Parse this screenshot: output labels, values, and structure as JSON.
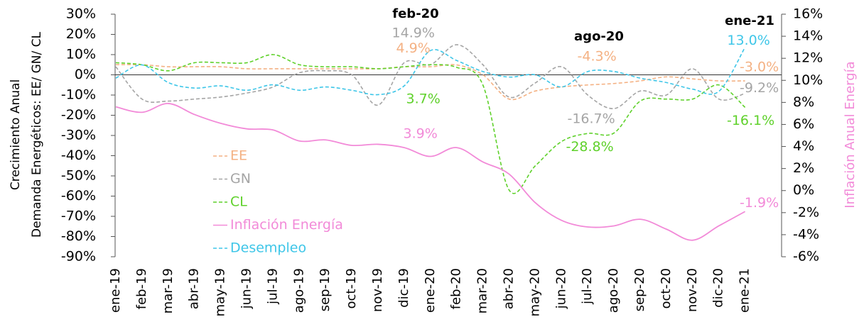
{
  "chart_data": {
    "type": "line",
    "ylabel": [
      "Crecimiento Anual",
      "Demanda Energéticos: EE/ GN/ CL"
    ],
    "y2label": "Inflación Anual Energía",
    "categories": [
      "ene-19",
      "feb-19",
      "mar-19",
      "abr-19",
      "may-19",
      "jun-19",
      "jul-19",
      "ago-19",
      "sep-19",
      "oct-19",
      "nov-19",
      "dic-19",
      "ene-20",
      "feb-20",
      "mar-20",
      "abr-20",
      "may-20",
      "jun-20",
      "jul-20",
      "ago-20",
      "sep-20",
      "oct-20",
      "nov-20",
      "dic-20",
      "ene-21"
    ],
    "annotations": [
      "feb-20",
      "ago-20",
      "ene-21"
    ],
    "ylim": [
      -90,
      30
    ],
    "yticks": [
      {
        "value": 30,
        "label": "30%"
      },
      {
        "value": 20,
        "label": "20%"
      },
      {
        "value": 10,
        "label": "10%"
      },
      {
        "value": 0,
        "label": "0%"
      },
      {
        "value": -10,
        "label": "-10%"
      },
      {
        "value": -20,
        "label": "-20%"
      },
      {
        "value": -30,
        "label": "-30%"
      },
      {
        "value": -40,
        "label": "-40%"
      },
      {
        "value": -50,
        "label": "-50%"
      },
      {
        "value": -60,
        "label": "-60%"
      },
      {
        "value": -70,
        "label": "-70%"
      },
      {
        "value": -80,
        "label": "-80%"
      },
      {
        "value": -90,
        "label": "-90%"
      }
    ],
    "y2lim": [
      -6,
      16
    ],
    "y2ticks": [
      {
        "value": 16,
        "label": "16%"
      },
      {
        "value": 14,
        "label": "14%"
      },
      {
        "value": 12,
        "label": "12%"
      },
      {
        "value": 10,
        "label": "10%"
      },
      {
        "value": 8,
        "label": "8%"
      },
      {
        "value": 6,
        "label": "6%"
      },
      {
        "value": 4,
        "label": "4%"
      },
      {
        "value": 2,
        "label": "2%"
      },
      {
        "value": 0,
        "label": "0%"
      },
      {
        "value": -2,
        "label": "-2%"
      },
      {
        "value": -4,
        "label": "-4%"
      },
      {
        "value": -6,
        "label": "-6%"
      }
    ],
    "series": [
      {
        "name": "EE",
        "color": "#f4b183",
        "dashed": true,
        "values": [
          5,
          5,
          4,
          4,
          4,
          3,
          3,
          3,
          3,
          3,
          3,
          4,
          4,
          4.9,
          0,
          -12,
          -8,
          -6,
          -5,
          -4.3,
          -3,
          -1,
          -2,
          -3,
          -3.0
        ],
        "value_labels": [
          null,
          null,
          null,
          null,
          null,
          null,
          null,
          null,
          null,
          null,
          null,
          null,
          null,
          "4.9%",
          null,
          null,
          null,
          null,
          null,
          "-4.3%",
          null,
          null,
          null,
          null,
          "-3.0%"
        ]
      },
      {
        "name": "GN",
        "color": "#a5a5a5",
        "dashed": true,
        "values": [
          4,
          -12,
          -13,
          -12,
          -11,
          -9,
          -6,
          1,
          2,
          0,
          -15,
          6,
          5,
          14.9,
          5,
          -11,
          -4,
          4,
          -10,
          -16.7,
          -8,
          -10,
          3,
          -12,
          -9.2
        ],
        "value_labels": [
          null,
          null,
          null,
          null,
          null,
          null,
          null,
          null,
          null,
          null,
          null,
          null,
          null,
          "14.9%",
          null,
          null,
          null,
          null,
          null,
          "-16.7%",
          null,
          null,
          null,
          null,
          "-9.2%"
        ]
      },
      {
        "name": "CL",
        "color": "#5fd12b",
        "dashed": true,
        "values": [
          6,
          5,
          2,
          6,
          6,
          6,
          10,
          5,
          4,
          4,
          3,
          4,
          5,
          3.7,
          -5,
          -57,
          -45,
          -33,
          -29,
          -28.8,
          -13,
          -12,
          -12,
          -5,
          -16.1
        ],
        "value_labels": [
          null,
          null,
          null,
          null,
          null,
          null,
          null,
          null,
          null,
          null,
          null,
          null,
          null,
          "3.7%",
          null,
          null,
          null,
          null,
          null,
          "-28.8%",
          null,
          null,
          null,
          null,
          "-16.1%"
        ]
      },
      {
        "name": "Inflación Energía",
        "color": "#f28ad8",
        "dashed": false,
        "axis": "y2",
        "values": [
          7.6,
          7.1,
          7.9,
          6.9,
          6.1,
          5.6,
          5.5,
          4.5,
          4.6,
          4.1,
          4.2,
          3.9,
          3.1,
          3.9,
          2.6,
          1.5,
          -1.1,
          -2.7,
          -3.3,
          -3.2,
          -2.6,
          -3.5,
          -4.5,
          -3.2,
          -1.9
        ],
        "value_labels": [
          null,
          null,
          null,
          null,
          null,
          null,
          null,
          null,
          null,
          null,
          null,
          null,
          null,
          "3.9%",
          null,
          null,
          null,
          null,
          null,
          null,
          null,
          null,
          null,
          null,
          "-1.9%"
        ]
      },
      {
        "name": "Desempleo",
        "color": "#3ec6e8",
        "dashed": true,
        "axis": "y2",
        "values": [
          10.2,
          11.4,
          9.8,
          9.3,
          9.5,
          9.1,
          9.6,
          9.1,
          9.4,
          9.1,
          8.7,
          9.5,
          12.7,
          11.8,
          10.8,
          10.3,
          10.5,
          9.4,
          10.8,
          10.8,
          10.2,
          9.8,
          9.2,
          9.0,
          13.0
        ],
        "value_labels": [
          null,
          null,
          null,
          null,
          null,
          null,
          null,
          null,
          null,
          null,
          null,
          null,
          null,
          null,
          null,
          null,
          null,
          null,
          null,
          null,
          null,
          null,
          null,
          null,
          "13.0%"
        ]
      }
    ]
  }
}
